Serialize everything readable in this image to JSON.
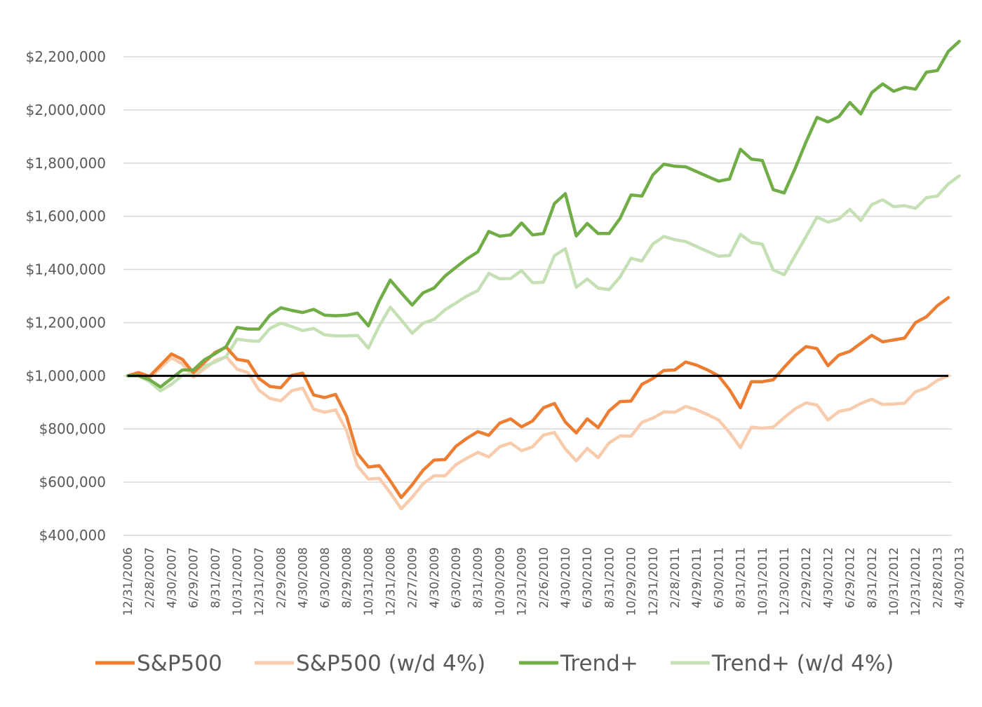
{
  "chart_data": {
    "type": "line",
    "title": "",
    "xlabel": "",
    "ylabel": "",
    "ylim": [
      400000,
      2300000
    ],
    "y_ticks": [
      "$400,000",
      "$600,000",
      "$800,000",
      "$1,000,000",
      "$1,200,000",
      "$1,400,000",
      "$1,600,000",
      "$1,800,000",
      "$2,000,000",
      "$2,200,000"
    ],
    "y_tick_values": [
      400000,
      600000,
      800000,
      1000000,
      1200000,
      1400000,
      1600000,
      1800000,
      2000000,
      2200000
    ],
    "x_tick_labels": [
      "12/31/2006",
      "2/28/2007",
      "4/30/2007",
      "6/29/2007",
      "8/31/2007",
      "10/31/2007",
      "12/31/2007",
      "2/29/2008",
      "4/30/2008",
      "6/30/2008",
      "8/29/2008",
      "10/31/2008",
      "12/31/2008",
      "2/27/2009",
      "4/30/2009",
      "6/30/2009",
      "8/31/2009",
      "10/30/2009",
      "12/31/2009",
      "2/26/2010",
      "4/30/2010",
      "6/30/2010",
      "8/31/2010",
      "10/29/2010",
      "12/31/2010",
      "2/28/2011",
      "4/29/2011",
      "6/30/2011",
      "8/31/2011",
      "10/31/2011",
      "12/30/2011",
      "2/29/2012",
      "4/30/2012",
      "6/29/2012",
      "8/31/2012",
      "10/31/2012",
      "12/31/2012",
      "2/28/2013",
      "4/30/2013"
    ],
    "x_tick_months": [
      0,
      2,
      4,
      6,
      8,
      10,
      12,
      14,
      16,
      18,
      20,
      22,
      24,
      26,
      28,
      30,
      32,
      34,
      36,
      38,
      40,
      42,
      44,
      46,
      48,
      50,
      52,
      54,
      56,
      58,
      60,
      62,
      64,
      66,
      68,
      70,
      72,
      74,
      76
    ],
    "x_unit": "months since 12/31/2006 (monthly observations)",
    "reference_line": {
      "value": 1000000,
      "color": "#000000"
    },
    "grid": true,
    "legend_position": "bottom",
    "series": [
      {
        "name": "S&P500",
        "color": "#ed7d31",
        "values": [
          1000000,
          1012000,
          998000,
          1040000,
          1082000,
          1062000,
          1012000,
          1050000,
          1088000,
          1108000,
          1062000,
          1055000,
          990000,
          960000,
          955000,
          1002000,
          1010000,
          928000,
          918000,
          930000,
          848000,
          708000,
          657000,
          662000,
          605000,
          542000,
          590000,
          645000,
          683000,
          685000,
          735000,
          765000,
          790000,
          776000,
          822000,
          838000,
          808000,
          830000,
          880000,
          896000,
          826000,
          785000,
          838000,
          805000,
          868000,
          903000,
          905000,
          968000,
          990000,
          1020000,
          1022000,
          1052000,
          1040000,
          1022000,
          1000000,
          948000,
          880000,
          978000,
          978000,
          985000,
          1032000,
          1076000,
          1110000,
          1102000,
          1038000,
          1078000,
          1092000,
          1122000,
          1152000,
          1128000,
          1135000,
          1142000,
          1200000,
          1222000,
          1264000,
          1294000
        ]
      },
      {
        "name": "S&P500 (w/d 4%)",
        "color": "#f8cbad",
        "values": [
          1000000,
          1010000,
          992000,
          1030000,
          1068000,
          1045000,
          995000,
          1026000,
          1057000,
          1072000,
          1025000,
          1012000,
          946000,
          915000,
          906000,
          944000,
          954000,
          874000,
          863000,
          872000,
          794000,
          661000,
          612000,
          614000,
          560000,
          500000,
          543000,
          594000,
          624000,
          624000,
          666000,
          690000,
          712000,
          695000,
          733000,
          747000,
          718000,
          733000,
          777000,
          787000,
          725000,
          680000,
          727000,
          692000,
          748000,
          774000,
          773000,
          825000,
          841000,
          864000,
          863000,
          885000,
          872000,
          854000,
          834000,
          787000,
          730000,
          807000,
          803000,
          807000,
          843000,
          876000,
          898000,
          890000,
          834000,
          866000,
          874000,
          896000,
          912000,
          892000,
          894000,
          897000,
          940000,
          954000,
          983000,
          1000000
        ]
      },
      {
        "name": "Trend+",
        "color": "#70ad47",
        "values": [
          1000000,
          1000000,
          985000,
          958000,
          990000,
          1022000,
          1022000,
          1060000,
          1083000,
          1110000,
          1182000,
          1176000,
          1176000,
          1228000,
          1256000,
          1246000,
          1238000,
          1250000,
          1228000,
          1226000,
          1228000,
          1236000,
          1188000,
          1282000,
          1360000,
          1312000,
          1266000,
          1312000,
          1330000,
          1375000,
          1408000,
          1440000,
          1466000,
          1543000,
          1525000,
          1530000,
          1575000,
          1530000,
          1535000,
          1648000,
          1685000,
          1526000,
          1573000,
          1535000,
          1535000,
          1592000,
          1680000,
          1676000,
          1756000,
          1796000,
          1788000,
          1786000,
          1768000,
          1750000,
          1732000,
          1740000,
          1852000,
          1815000,
          1810000,
          1700000,
          1688000,
          1780000,
          1880000,
          1972000,
          1955000,
          1975000,
          2028000,
          1985000,
          2065000,
          2098000,
          2070000,
          2085000,
          2078000,
          2142000,
          2148000,
          2220000,
          2258000
        ]
      },
      {
        "name": "Trend+ (w/d 4%)",
        "color": "#c5e0b4",
        "values": [
          1000000,
          1000000,
          978000,
          943000,
          968000,
          1002000,
          1006000,
          1036000,
          1052000,
          1072000,
          1138000,
          1132000,
          1130000,
          1178000,
          1198000,
          1185000,
          1170000,
          1178000,
          1154000,
          1150000,
          1150000,
          1152000,
          1104000,
          1188000,
          1258000,
          1210000,
          1160000,
          1198000,
          1212000,
          1248000,
          1274000,
          1300000,
          1320000,
          1385000,
          1365000,
          1366000,
          1396000,
          1350000,
          1352000,
          1452000,
          1478000,
          1333000,
          1364000,
          1330000,
          1324000,
          1372000,
          1442000,
          1432000,
          1496000,
          1524000,
          1512000,
          1505000,
          1486000,
          1468000,
          1450000,
          1452000,
          1532000,
          1502000,
          1495000,
          1398000,
          1380000,
          1452000,
          1524000,
          1597000,
          1578000,
          1590000,
          1626000,
          1584000,
          1644000,
          1662000,
          1636000,
          1640000,
          1630000,
          1670000,
          1676000,
          1722000,
          1752000
        ]
      }
    ]
  }
}
